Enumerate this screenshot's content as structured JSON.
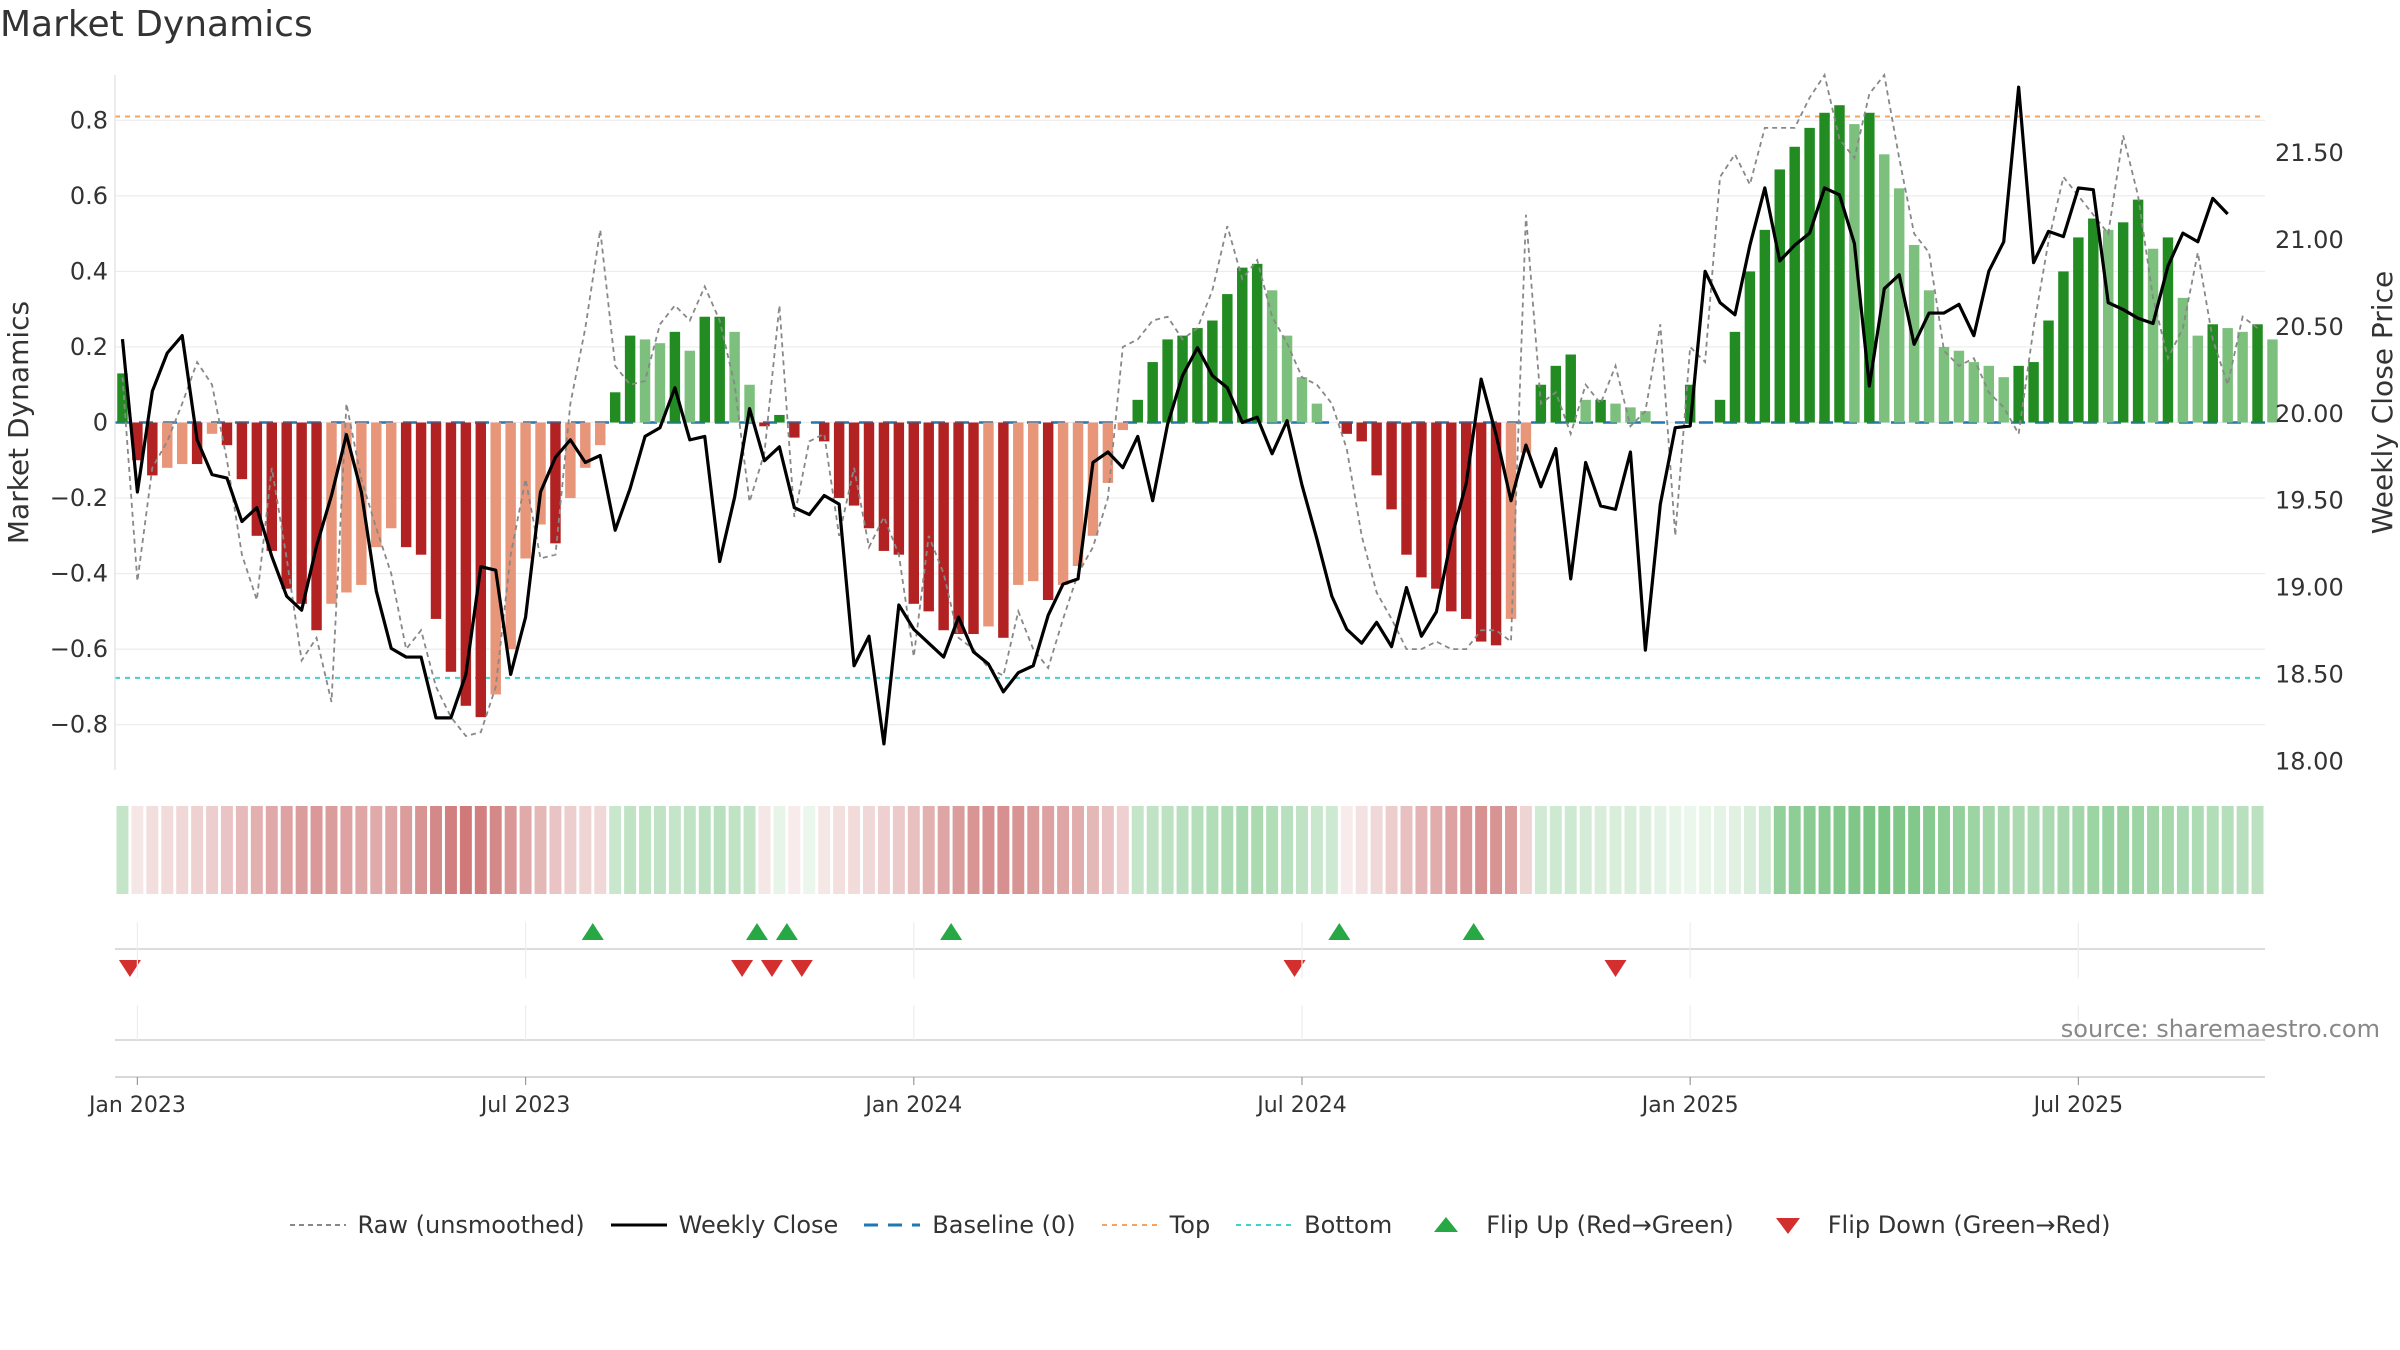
{
  "title": "Market Dynamics",
  "source": "source: sharemaestro.com",
  "chart_data": {
    "type": "bar+line",
    "title": "Market Dynamics",
    "ylabel_left": "Market Dynamics",
    "ylabel_right": "Weekly Close Price",
    "ylim_left": [
      -0.92,
      0.92
    ],
    "ylim_right": [
      17.95,
      21.95
    ],
    "left_ticks": [
      -0.8,
      -0.6,
      -0.4,
      -0.2,
      0,
      0.2,
      0.4,
      0.6,
      0.8
    ],
    "left_tick_labels": [
      "−0.8",
      "−0.6",
      "−0.4",
      "−0.2",
      "0",
      "0.2",
      "0.4",
      "0.6",
      "0.8"
    ],
    "right_ticks": [
      18.0,
      18.5,
      19.0,
      19.5,
      20.0,
      20.5,
      21.0,
      21.5
    ],
    "right_tick_labels": [
      "18.00",
      "18.50",
      "19.00",
      "19.50",
      "20.00",
      "20.50",
      "21.00",
      "21.50"
    ],
    "x_tick_weeks": [
      1,
      27,
      53,
      79,
      105,
      131
    ],
    "x_tick_labels": [
      "Jan 2023",
      "Jul 2023",
      "Jan 2024",
      "Jul 2024",
      "Jan 2025",
      "Jul 2025"
    ],
    "weeks": 144,
    "bars": [
      0.13,
      -0.1,
      -0.14,
      -0.12,
      -0.11,
      -0.11,
      -0.03,
      -0.06,
      -0.15,
      -0.3,
      -0.34,
      -0.44,
      -0.48,
      -0.55,
      -0.48,
      -0.45,
      -0.43,
      -0.33,
      -0.28,
      -0.33,
      -0.35,
      -0.52,
      -0.66,
      -0.75,
      -0.78,
      -0.72,
      -0.6,
      -0.36,
      -0.27,
      -0.32,
      -0.2,
      -0.12,
      -0.06,
      0.08,
      0.23,
      0.22,
      0.21,
      0.24,
      0.19,
      0.28,
      0.28,
      0.24,
      0.1,
      -0.01,
      0.02,
      -0.04,
      0.0,
      -0.05,
      -0.2,
      -0.22,
      -0.28,
      -0.34,
      -0.35,
      -0.48,
      -0.5,
      -0.55,
      -0.56,
      -0.56,
      -0.54,
      -0.57,
      -0.43,
      -0.42,
      -0.47,
      -0.43,
      -0.38,
      -0.3,
      -0.16,
      -0.02,
      0.06,
      0.16,
      0.22,
      0.23,
      0.25,
      0.27,
      0.34,
      0.41,
      0.42,
      0.35,
      0.23,
      0.12,
      0.05,
      0.0,
      -0.03,
      -0.05,
      -0.14,
      -0.23,
      -0.35,
      -0.41,
      -0.44,
      -0.5,
      -0.52,
      -0.58,
      -0.59,
      -0.52,
      -0.08,
      0.1,
      0.15,
      0.18,
      0.06,
      0.06,
      0.05,
      0.04,
      0.03,
      0.0,
      0.0,
      0.1,
      0.0,
      0.06,
      0.24,
      0.4,
      0.51,
      0.67,
      0.73,
      0.78,
      0.82,
      0.84,
      0.79,
      0.82,
      0.71,
      0.62,
      0.47,
      0.35,
      0.2,
      0.19,
      0.16,
      0.15,
      0.12,
      0.15,
      0.16,
      0.27,
      0.4,
      0.49,
      0.54,
      0.51,
      0.53,
      0.59,
      0.46,
      0.49,
      0.33,
      0.23,
      0.26,
      0.25,
      0.24,
      0.26,
      0.22
    ],
    "raw": [
      0.12,
      -0.42,
      -0.12,
      -0.05,
      0.05,
      0.16,
      0.1,
      -0.1,
      -0.35,
      -0.47,
      -0.12,
      -0.36,
      -0.63,
      -0.57,
      -0.74,
      0.05,
      -0.15,
      -0.28,
      -0.4,
      -0.6,
      -0.55,
      -0.7,
      -0.78,
      -0.83,
      -0.82,
      -0.7,
      -0.35,
      -0.15,
      -0.36,
      -0.35,
      0.05,
      0.25,
      0.51,
      0.15,
      0.1,
      0.11,
      0.26,
      0.31,
      0.27,
      0.36,
      0.27,
      0.1,
      -0.21,
      -0.08,
      0.31,
      -0.25,
      -0.05,
      -0.03,
      -0.3,
      -0.12,
      -0.33,
      -0.25,
      -0.35,
      -0.62,
      -0.3,
      -0.4,
      -0.57,
      -0.6,
      -0.65,
      -0.67,
      -0.5,
      -0.6,
      -0.65,
      -0.52,
      -0.4,
      -0.33,
      -0.2,
      0.2,
      0.22,
      0.27,
      0.28,
      0.22,
      0.25,
      0.35,
      0.52,
      0.38,
      0.43,
      0.28,
      0.21,
      0.12,
      0.1,
      0.05,
      -0.07,
      -0.3,
      -0.45,
      -0.52,
      -0.6,
      -0.6,
      -0.58,
      -0.6,
      -0.6,
      -0.55,
      -0.55,
      -0.58,
      0.55,
      0.05,
      0.08,
      -0.03,
      0.1,
      0.05,
      0.15,
      -0.01,
      0.03,
      0.26,
      -0.3,
      0.2,
      0.16,
      0.65,
      0.71,
      0.63,
      0.78,
      0.78,
      0.78,
      0.86,
      0.92,
      0.75,
      0.7,
      0.87,
      0.92,
      0.7,
      0.5,
      0.45,
      0.19,
      0.15,
      0.17,
      0.08,
      0.04,
      -0.03,
      0.25,
      0.48,
      0.65,
      0.6,
      0.55,
      0.5,
      0.76,
      0.6,
      0.33,
      0.17,
      0.25,
      0.45,
      0.22,
      0.1,
      0.28,
      0.25
    ],
    "price": [
      20.43,
      19.55,
      20.13,
      20.35,
      20.45,
      19.85,
      19.65,
      19.63,
      19.38,
      19.46,
      19.18,
      18.95,
      18.87,
      19.24,
      19.53,
      19.88,
      19.55,
      18.98,
      18.65,
      18.6,
      18.6,
      18.25,
      18.25,
      18.5,
      19.12,
      19.1,
      18.5,
      18.83,
      19.55,
      19.75,
      19.85,
      19.72,
      19.76,
      19.33,
      19.57,
      19.87,
      19.92,
      20.15,
      19.85,
      19.87,
      19.15,
      19.52,
      20.03,
      19.73,
      19.81,
      19.46,
      19.42,
      19.53,
      19.48,
      18.55,
      18.72,
      18.1,
      18.9,
      18.76,
      18.68,
      18.6,
      18.83,
      18.63,
      18.56,
      18.4,
      18.51,
      18.55,
      18.84,
      19.02,
      19.05,
      19.72,
      19.78,
      19.69,
      19.87,
      19.5,
      19.94,
      20.22,
      20.38,
      20.22,
      20.15,
      19.95,
      19.98,
      19.77,
      19.96,
      19.59,
      19.28,
      18.95,
      18.76,
      18.68,
      18.8,
      18.66,
      19.0,
      18.72,
      18.86,
      19.28,
      19.6,
      20.2,
      19.88,
      19.5,
      19.82,
      19.58,
      19.8,
      19.05,
      19.72,
      19.47,
      19.45,
      19.78,
      18.64,
      19.48,
      19.92,
      19.93,
      20.82,
      20.64,
      20.57,
      20.97,
      21.3,
      20.88,
      20.97,
      21.04,
      21.3,
      21.26,
      20.98,
      20.16,
      20.72,
      20.8,
      20.4,
      20.58,
      20.58,
      20.63,
      20.45,
      20.82,
      20.99,
      21.88,
      20.87,
      21.05,
      21.02,
      21.3,
      21.29,
      20.64,
      20.6,
      20.55,
      20.52,
      20.85,
      21.04,
      20.99,
      21.24,
      21.15
    ],
    "top_line": 0.81,
    "bottom_line": -0.676,
    "baseline": 0,
    "heat_strip": [
      0.3,
      0.12,
      0.17,
      0.18,
      0.2,
      0.23,
      0.25,
      0.3,
      0.35,
      0.4,
      0.44,
      0.47,
      0.5,
      0.52,
      0.5,
      0.47,
      0.45,
      0.43,
      0.45,
      0.5,
      0.55,
      0.6,
      0.65,
      0.68,
      0.65,
      0.6,
      0.53,
      0.43,
      0.36,
      0.3,
      0.25,
      0.22,
      0.2,
      0.28,
      0.33,
      0.33,
      0.32,
      0.3,
      0.32,
      0.35,
      0.36,
      0.33,
      0.3,
      0.12,
      0.12,
      0.1,
      0.1,
      0.12,
      0.16,
      0.18,
      0.2,
      0.24,
      0.27,
      0.32,
      0.4,
      0.46,
      0.5,
      0.54,
      0.56,
      0.57,
      0.55,
      0.5,
      0.48,
      0.45,
      0.42,
      0.36,
      0.3,
      0.24,
      0.3,
      0.32,
      0.34,
      0.36,
      0.38,
      0.4,
      0.42,
      0.44,
      0.43,
      0.4,
      0.36,
      0.32,
      0.28,
      0.25,
      0.1,
      0.15,
      0.2,
      0.26,
      0.32,
      0.38,
      0.42,
      0.48,
      0.52,
      0.56,
      0.55,
      0.5,
      0.22,
      0.24,
      0.26,
      0.25,
      0.22,
      0.2,
      0.2,
      0.2,
      0.18,
      0.15,
      0.12,
      0.1,
      0.12,
      0.14,
      0.16,
      0.2,
      0.25,
      0.55,
      0.58,
      0.6,
      0.62,
      0.64,
      0.66,
      0.68,
      0.68,
      0.66,
      0.64,
      0.62,
      0.58,
      0.55,
      0.5,
      0.47,
      0.45,
      0.43,
      0.42,
      0.43,
      0.45,
      0.47,
      0.5,
      0.52,
      0.53,
      0.5,
      0.48,
      0.46,
      0.44,
      0.42,
      0.4,
      0.38,
      0.36,
      0.35
    ],
    "flip_up_weeks": [
      31.5,
      42.5,
      44.5,
      55.5,
      81.5,
      90.5
    ],
    "flip_down_weeks": [
      0.5,
      41.5,
      43.5,
      45.5,
      78.5,
      100
    ]
  },
  "colors": {
    "strong_green": "#228b22",
    "light_green": "#7dc07d",
    "strong_red": "#b22222",
    "light_red": "#e8967a",
    "top": "#f4a460",
    "bottom": "#40d0d0",
    "baseline": "#1f77b4",
    "raw": "#888888",
    "price": "#000000",
    "marker_up": "#28a745",
    "marker_down": "#d32f2f"
  },
  "legend": [
    {
      "key": "raw",
      "label": "Raw (unsmoothed)"
    },
    {
      "key": "price",
      "label": "Weekly Close"
    },
    {
      "key": "baseline",
      "label": "Baseline (0)"
    },
    {
      "key": "top",
      "label": "Top"
    },
    {
      "key": "bottom",
      "label": "Bottom"
    },
    {
      "key": "up",
      "label": "Flip Up (Red→Green)"
    },
    {
      "key": "down",
      "label": "Flip Down (Green→Red)"
    }
  ]
}
